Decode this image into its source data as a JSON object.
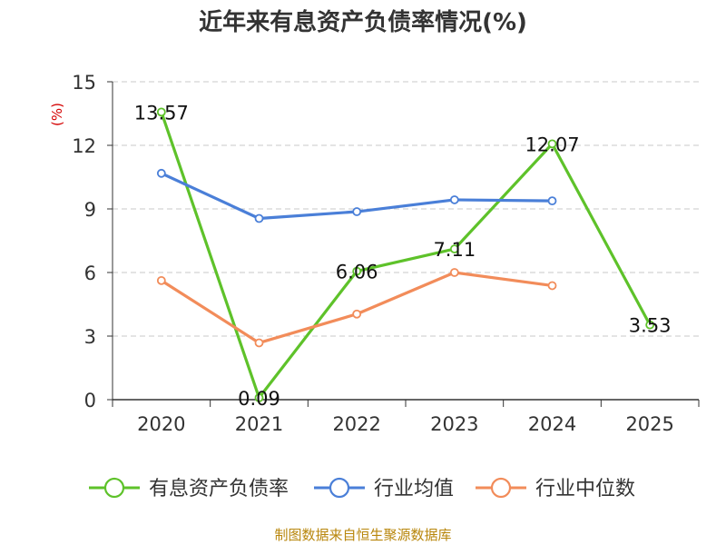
{
  "chart_data": {
    "type": "line",
    "title": "近年来有息资产负债率情况(%)",
    "ylabel": "(%)",
    "xlabel": "",
    "categories": [
      "2020",
      "2021",
      "2022",
      "2023",
      "2024",
      "2025"
    ],
    "ylim": [
      0,
      15
    ],
    "yticks": [
      0,
      3,
      6,
      9,
      12,
      15
    ],
    "grid": true,
    "legend_position": "bottom",
    "series": [
      {
        "name": "有息资产负债率",
        "color": "#5ec22a",
        "values": [
          13.57,
          0.09,
          6.06,
          7.11,
          12.07,
          3.53
        ],
        "data_labels": [
          "13.57",
          "0.09",
          "6.06",
          "7.11",
          "12.07",
          "3.53"
        ]
      },
      {
        "name": "行业均值",
        "color": "#4a7fd8",
        "values": [
          10.68,
          8.55,
          8.87,
          9.43,
          9.38,
          null
        ]
      },
      {
        "name": "行业中位数",
        "color": "#f28c5a",
        "values": [
          5.62,
          2.68,
          4.04,
          6.0,
          5.38,
          null
        ]
      }
    ]
  },
  "source": "制图数据来自恒生聚源数据库"
}
